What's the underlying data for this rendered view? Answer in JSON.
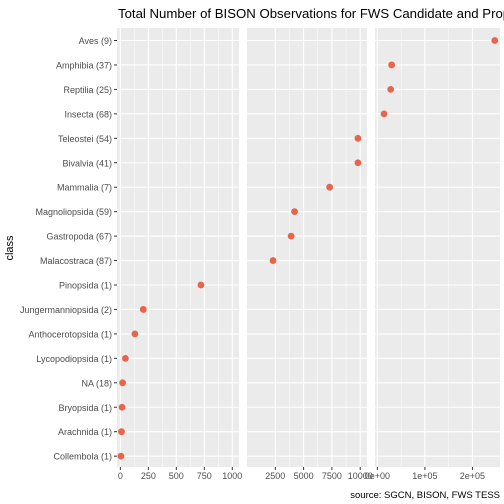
{
  "chart_data": {
    "type": "scatter",
    "title": "Total Number of BISON Observations for FWS Candidate and Prope",
    "caption": "source: SGCN, BISON, FWS TESS",
    "ylabel": "class",
    "xlabel": "",
    "grid": true,
    "colors": {
      "point": "#E8644B",
      "panel": "#EBEBEB",
      "gridline": "#FFFFFF",
      "text": "#4D4D4D",
      "title": "#000000"
    },
    "categories": [
      "Aves (9)",
      "Amphibia (37)",
      "Reptilia (25)",
      "Insecta (68)",
      "Teleostei (54)",
      "Bivalvia (41)",
      "Mammalia (7)",
      "Magnoliopsida (59)",
      "Gastropoda (67)",
      "Malacostraca (87)",
      "Pinopsida (1)",
      "Jungermanniopsida (2)",
      "Anthocerotopsida (1)",
      "Lycopodiopsida (1)",
      "NA (18)",
      "Bryopsida (1)",
      "Arachnida (1)",
      "Collembola (1)"
    ],
    "panels": [
      {
        "xlim": [
          -30,
          1060
        ],
        "ticks": [
          0,
          250,
          500,
          750,
          1000
        ],
        "tick_labels": [
          "0",
          "250",
          "500",
          "750",
          "1000"
        ],
        "points": [
          {
            "category": "Pinopsida (1)",
            "value": 720
          },
          {
            "category": "Jungermanniopsida (2)",
            "value": 205
          },
          {
            "category": "Anthocerotopsida (1)",
            "value": 130
          },
          {
            "category": "Lycopodiopsida (1)",
            "value": 45
          },
          {
            "category": "NA (18)",
            "value": 20
          },
          {
            "category": "Bryopsida (1)",
            "value": 15
          },
          {
            "category": "Arachnida (1)",
            "value": 10
          },
          {
            "category": "Collembola (1)",
            "value": 5
          }
        ]
      },
      {
        "xlim": [
          0,
          10600
        ],
        "ticks": [
          2500,
          5000,
          7500,
          10000
        ],
        "tick_labels": [
          "2500",
          "5000",
          "7500",
          "10000"
        ],
        "points": [
          {
            "category": "Teleostei (54)",
            "value": 9800
          },
          {
            "category": "Bivalvia (41)",
            "value": 9800
          },
          {
            "category": "Mammalia (7)",
            "value": 7300
          },
          {
            "category": "Magnoliopsida (59)",
            "value": 4200
          },
          {
            "category": "Gastropoda (67)",
            "value": 3900
          },
          {
            "category": "Malacostraca (87)",
            "value": 2300
          }
        ]
      },
      {
        "xlim": [
          -5000,
          258000
        ],
        "ticks": [
          0,
          100000,
          200000
        ],
        "tick_labels": [
          "0e+00",
          "1e+05",
          "2e+05"
        ],
        "points": [
          {
            "category": "Aves (9)",
            "value": 247000
          },
          {
            "category": "Amphibia (37)",
            "value": 30000
          },
          {
            "category": "Reptilia (25)",
            "value": 28000
          },
          {
            "category": "Insecta (68)",
            "value": 14000
          }
        ]
      }
    ]
  }
}
